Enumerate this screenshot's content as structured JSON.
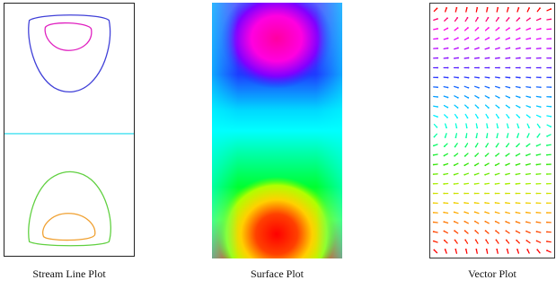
{
  "captions": {
    "stream": "Stream Line Plot",
    "surface": "Surface Plot",
    "vector": "Vector Plot"
  },
  "colors": {
    "outer_top_contour": "#4040d8",
    "inner_top_contour": "#e020c0",
    "midline": "#40e0f0",
    "outer_bottom_contour": "#60d040",
    "inner_bottom_contour": "#f0a030"
  }
}
